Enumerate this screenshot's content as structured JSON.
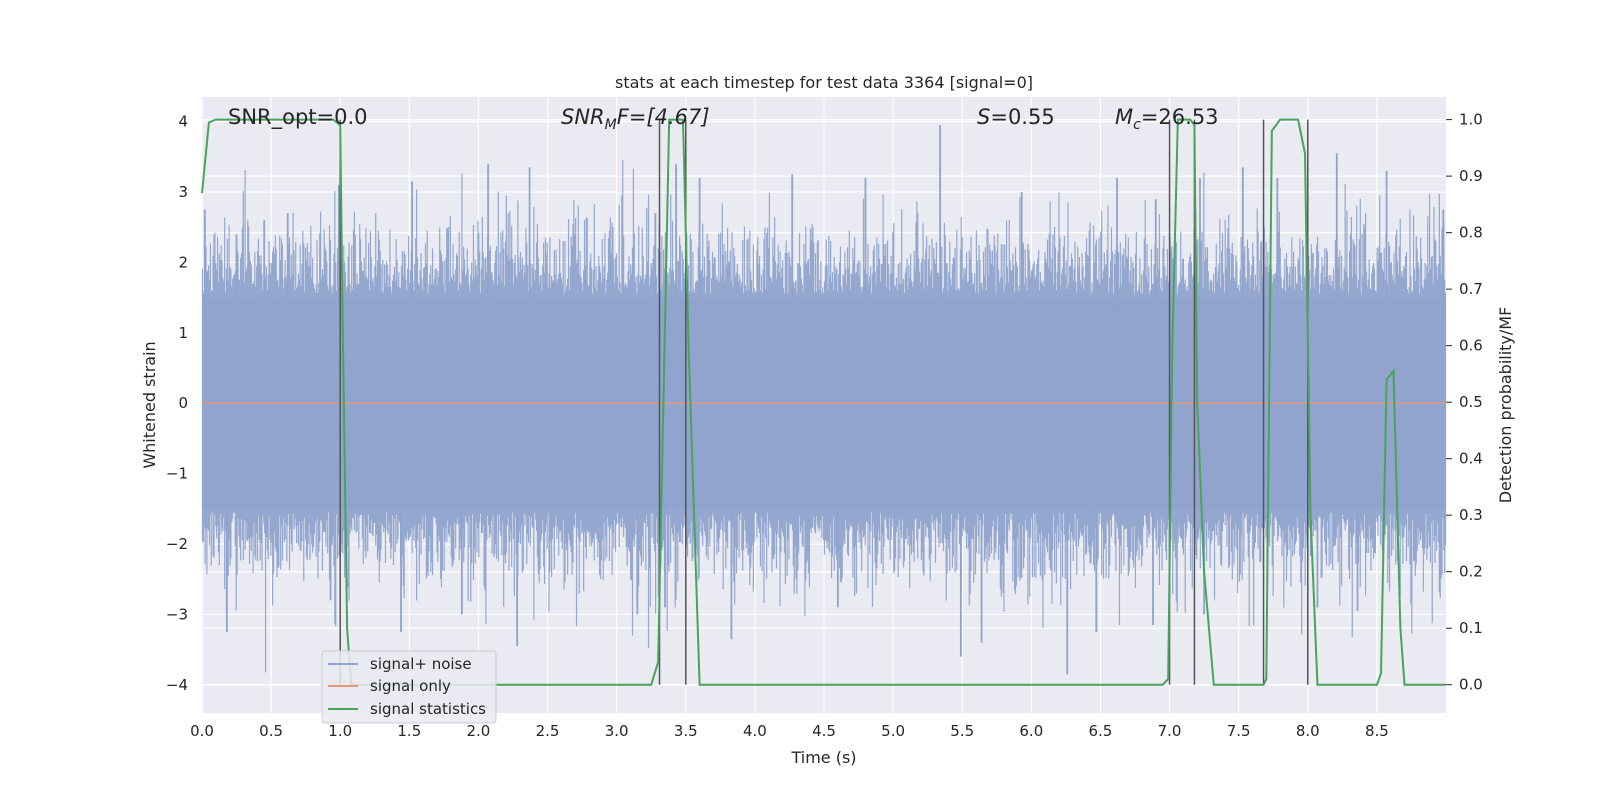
{
  "chart_data": {
    "type": "line",
    "title": "stats at each timestep for test data 3364 [signal=0]",
    "xlabel": "Time (s)",
    "ylabel": "Whitened strain",
    "ylabel_right": "Detection probability/MF",
    "xlim": [
      0,
      9
    ],
    "ylim_left": [
      -4.4,
      4.35
    ],
    "ylim_right": [
      -0.05,
      1.04
    ],
    "x_ticks": [
      "0.0",
      "0.5",
      "1.0",
      "1.5",
      "2.0",
      "2.5",
      "3.0",
      "3.5",
      "4.0",
      "4.5",
      "5.0",
      "5.5",
      "6.0",
      "6.5",
      "7.0",
      "7.5",
      "8.0",
      "8.5"
    ],
    "y_left_ticks": [
      "−4",
      "−3",
      "−2",
      "−1",
      "0",
      "1",
      "2",
      "3",
      "4"
    ],
    "y_right_ticks": [
      "0.0",
      "0.1",
      "0.2",
      "0.3",
      "0.4",
      "0.5",
      "0.6",
      "0.7",
      "0.8",
      "0.9",
      "1.0"
    ],
    "grid": true,
    "legend_position": "lower-left",
    "annotations": {
      "snr_opt": "SNR_opt=0.0",
      "snr_mf_base": "SNR",
      "snr_mf_sub": "M",
      "snr_mf_rest": "F=[4.67]",
      "s_var": "S",
      "s_val": "=0.55",
      "mc_var": "M",
      "mc_sub": "c",
      "mc_val": "=26.53"
    },
    "series": [
      {
        "name": "signal+ noise",
        "color": "#8fa3cc",
        "envelope": "noise band, approx ±1.6 typical, peaks to ±3.9",
        "spikes_high": [
          [
            0.02,
            2.75
          ],
          [
            0.25,
            2.4
          ],
          [
            0.45,
            2.6
          ],
          [
            0.62,
            2.7
          ],
          [
            0.99,
            3.1
          ],
          [
            1.52,
            3.15
          ],
          [
            2.07,
            3.4
          ],
          [
            2.37,
            3.35
          ],
          [
            3.28,
            2.7
          ],
          [
            3.43,
            3.4
          ],
          [
            3.6,
            3.2
          ],
          [
            4.27,
            3.25
          ],
          [
            4.8,
            3.2
          ],
          [
            5.34,
            3.95
          ],
          [
            5.93,
            3.0
          ],
          [
            6.62,
            3.2
          ],
          [
            6.9,
            2.9
          ],
          [
            7.22,
            3.2
          ],
          [
            7.53,
            3.35
          ],
          [
            7.78,
            3.2
          ],
          [
            8.21,
            3.55
          ],
          [
            8.57,
            3.3
          ],
          [
            8.98,
            2.75
          ]
        ],
        "spikes_low": [
          [
            0.18,
            -3.25
          ],
          [
            0.93,
            -2.8
          ],
          [
            1.44,
            -3.25
          ],
          [
            1.88,
            -3.0
          ],
          [
            2.28,
            -3.45
          ],
          [
            3.15,
            -3.0
          ],
          [
            3.35,
            -2.9
          ],
          [
            3.83,
            -3.35
          ],
          [
            4.6,
            -2.9
          ],
          [
            5.49,
            -3.6
          ],
          [
            5.64,
            -3.4
          ],
          [
            6.26,
            -3.85
          ],
          [
            6.47,
            -3.25
          ],
          [
            6.88,
            -3.15
          ],
          [
            7.25,
            -3.0
          ],
          [
            8.07,
            -2.9
          ],
          [
            8.36,
            -2.95
          ]
        ]
      },
      {
        "name": "signal only",
        "color": "#e6967a",
        "constant_value": 0
      },
      {
        "name": "signal statistics",
        "color": "#4aa35a",
        "axis": "right",
        "points": [
          [
            0.0,
            0.87
          ],
          [
            0.05,
            0.995
          ],
          [
            0.1,
            1.0
          ],
          [
            0.95,
            1.0
          ],
          [
            1.0,
            0.99
          ],
          [
            1.02,
            0.6
          ],
          [
            1.05,
            0.1
          ],
          [
            1.08,
            0.0
          ],
          [
            3.25,
            0.0
          ],
          [
            3.3,
            0.04
          ],
          [
            3.33,
            0.4
          ],
          [
            3.38,
            1.0
          ],
          [
            3.48,
            1.0
          ],
          [
            3.52,
            0.6
          ],
          [
            3.6,
            0.0
          ],
          [
            6.95,
            0.0
          ],
          [
            6.99,
            0.01
          ],
          [
            7.02,
            0.6
          ],
          [
            7.06,
            1.0
          ],
          [
            7.15,
            1.0
          ],
          [
            7.18,
            0.99
          ],
          [
            7.2,
            0.5
          ],
          [
            7.25,
            0.2
          ],
          [
            7.32,
            0.0
          ],
          [
            7.68,
            0.0
          ],
          [
            7.7,
            0.01
          ],
          [
            7.74,
            0.98
          ],
          [
            7.8,
            1.0
          ],
          [
            7.93,
            1.0
          ],
          [
            7.98,
            0.94
          ],
          [
            8.02,
            0.3
          ],
          [
            8.07,
            0.0
          ],
          [
            8.1,
            0.0
          ],
          [
            8.5,
            0.0
          ],
          [
            8.53,
            0.02
          ],
          [
            8.57,
            0.54
          ],
          [
            8.62,
            0.555
          ],
          [
            8.67,
            0.1
          ],
          [
            8.7,
            0.0
          ],
          [
            9.0,
            0.0
          ]
        ]
      }
    ],
    "vertical_lines_x": [
      1.0,
      3.31,
      3.5,
      7.0,
      7.18,
      7.68,
      8.0
    ]
  }
}
